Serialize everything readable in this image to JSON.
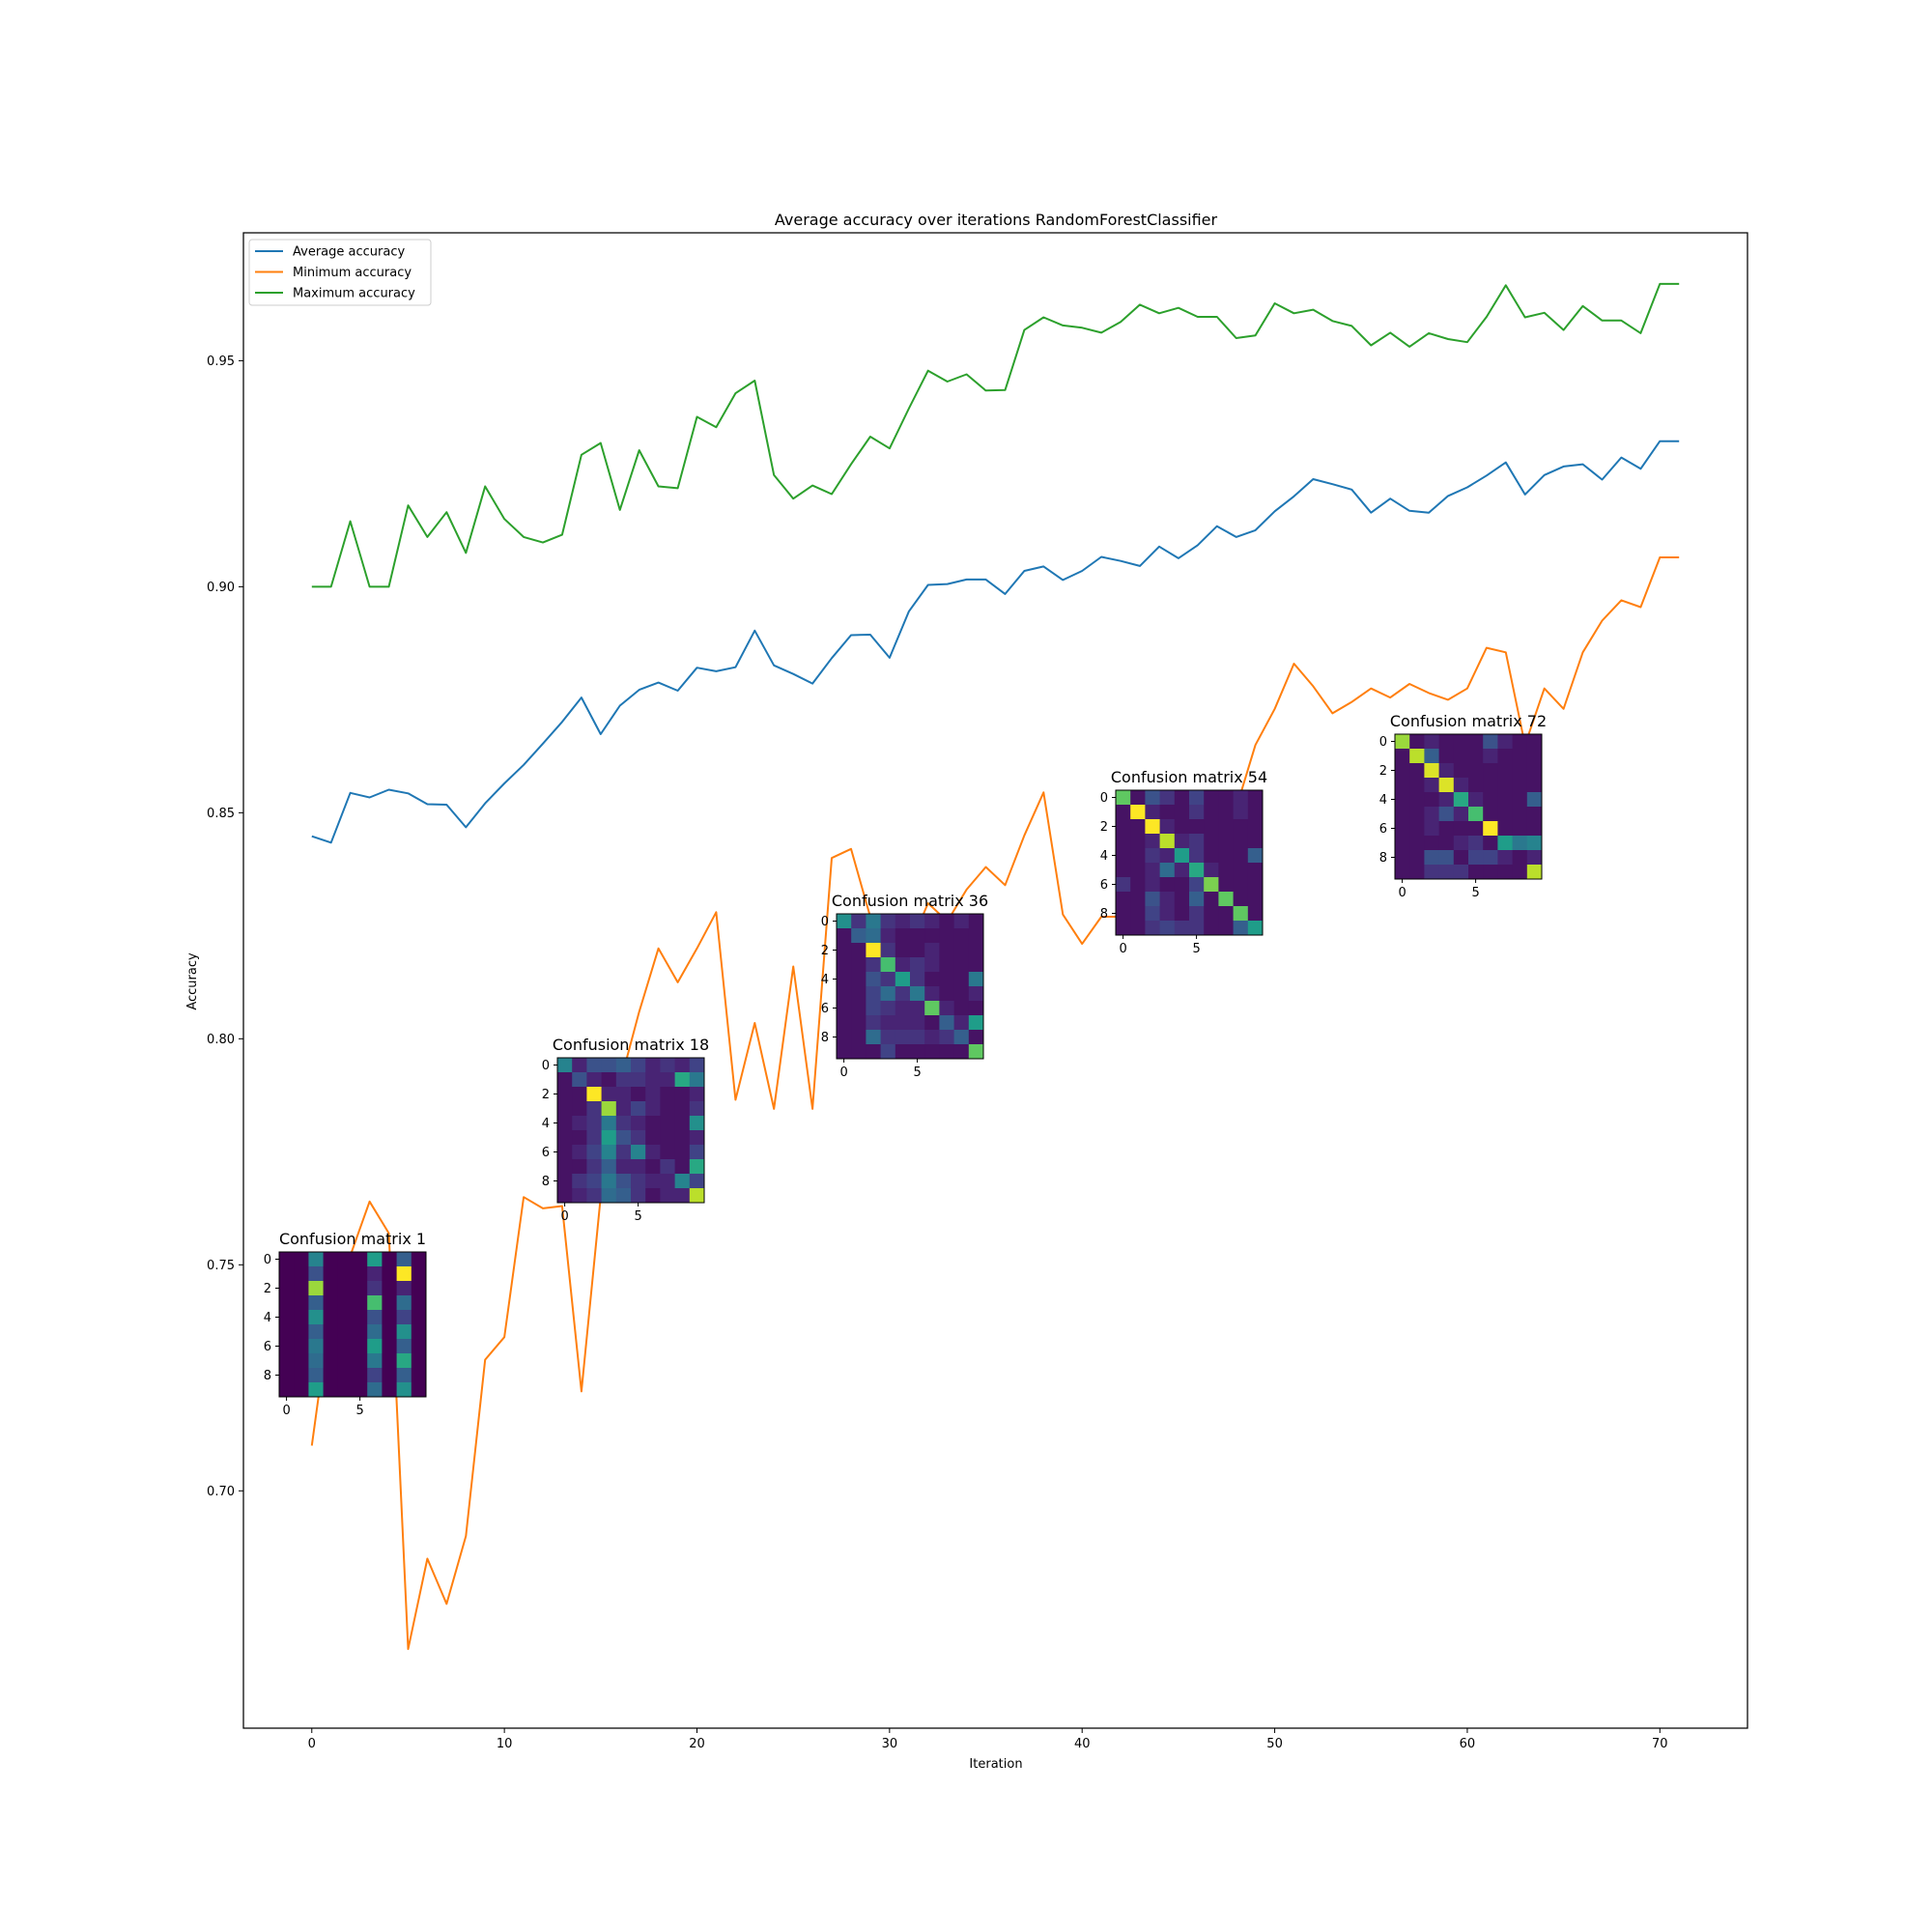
{
  "chart_data": {
    "type": "line",
    "title": "Average accuracy over iterations RandomForestClassifier",
    "xlabel": "Iteration",
    "ylabel": "Accuracy",
    "xlim": [
      -3.55,
      74.55
    ],
    "ylim": [
      0.6475,
      0.9783
    ],
    "xticks": [
      0,
      10,
      20,
      30,
      40,
      50,
      60,
      70
    ],
    "yticks": [
      0.7,
      0.75,
      0.8,
      0.85,
      0.9,
      0.95
    ],
    "xtick_labels": [
      "0",
      "10",
      "20",
      "30",
      "40",
      "50",
      "60",
      "70"
    ],
    "ytick_labels": [
      "0.70",
      "0.75",
      "0.80",
      "0.85",
      "0.90",
      "0.95"
    ],
    "legend_position": "top-left",
    "grid": false,
    "x": [
      0,
      1,
      2,
      3,
      4,
      5,
      6,
      7,
      8,
      9,
      10,
      11,
      12,
      13,
      14,
      15,
      16,
      17,
      18,
      19,
      20,
      21,
      22,
      23,
      24,
      25,
      26,
      27,
      28,
      29,
      30,
      31,
      32,
      33,
      34,
      35,
      36,
      37,
      38,
      39,
      40,
      41,
      42,
      43,
      44,
      45,
      46,
      47,
      48,
      49,
      50,
      51,
      52,
      53,
      54,
      55,
      56,
      57,
      58,
      59,
      60,
      61,
      62,
      63,
      64,
      65,
      66,
      67,
      68,
      69,
      70,
      71
    ],
    "series": [
      {
        "name": "Average accuracy",
        "color": "#1f77b4",
        "values": [
          0.8448,
          0.8434,
          0.8544,
          0.8534,
          0.8551,
          0.8543,
          0.8519,
          0.8518,
          0.8468,
          0.8521,
          0.8565,
          0.8606,
          0.8653,
          0.8701,
          0.8755,
          0.8674,
          0.8737,
          0.8772,
          0.8788,
          0.877,
          0.8821,
          0.8813,
          0.8822,
          0.8903,
          0.8826,
          0.8807,
          0.8786,
          0.8842,
          0.8893,
          0.8894,
          0.8843,
          0.8945,
          0.9004,
          0.9006,
          0.9016,
          0.9016,
          0.8984,
          0.9035,
          0.9045,
          0.9015,
          0.9035,
          0.9066,
          0.9057,
          0.9046,
          0.9089,
          0.9063,
          0.9092,
          0.9134,
          0.911,
          0.9125,
          0.9167,
          0.92,
          0.9238,
          0.9227,
          0.9215,
          0.9164,
          0.9195,
          0.9168,
          0.9164,
          0.9201,
          0.922,
          0.9246,
          0.9275,
          0.9204,
          0.9247,
          0.9266,
          0.9271,
          0.9237,
          0.9286,
          0.9261,
          0.9322,
          0.9322
        ]
      },
      {
        "name": "Minimum accuracy",
        "color": "#ff7f0e",
        "values": [
          0.71,
          0.741,
          0.752,
          0.764,
          0.757,
          0.665,
          0.685,
          0.675,
          0.69,
          0.729,
          0.734,
          0.765,
          0.7625,
          0.763,
          0.722,
          0.765,
          0.79,
          0.806,
          0.82,
          0.8125,
          0.82,
          0.828,
          0.7865,
          0.8035,
          0.7845,
          0.816,
          0.7845,
          0.84,
          0.842,
          0.827,
          0.8,
          0.82,
          0.83,
          0.826,
          0.833,
          0.838,
          0.834,
          0.845,
          0.8545,
          0.8275,
          0.821,
          0.827,
          0.827,
          0.829,
          0.835,
          0.838,
          0.844,
          0.845,
          0.851,
          0.865,
          0.873,
          0.883,
          0.878,
          0.872,
          0.8745,
          0.8775,
          0.8755,
          0.8785,
          0.8765,
          0.875,
          0.8775,
          0.8865,
          0.8855,
          0.865,
          0.8775,
          0.873,
          0.8855,
          0.8925,
          0.897,
          0.8955,
          0.9065,
          0.9065
        ]
      },
      {
        "name": "Maximum accuracy",
        "color": "#2ca02c",
        "values": [
          0.9,
          0.9,
          0.9145,
          0.9,
          0.9,
          0.918,
          0.911,
          0.9165,
          0.9075,
          0.9222,
          0.915,
          0.911,
          0.9098,
          0.9115,
          0.9292,
          0.9318,
          0.917,
          0.9302,
          0.9222,
          0.9218,
          0.9376,
          0.9353,
          0.9428,
          0.9456,
          0.9247,
          0.9195,
          0.9224,
          0.9205,
          0.9271,
          0.9332,
          0.9306,
          0.9394,
          0.9478,
          0.9454,
          0.947,
          0.9434,
          0.9435,
          0.9568,
          0.9596,
          0.9578,
          0.9573,
          0.9562,
          0.9586,
          0.9624,
          0.9605,
          0.9617,
          0.9597,
          0.9597,
          0.955,
          0.9556,
          0.9627,
          0.9605,
          0.9613,
          0.9588,
          0.9577,
          0.9534,
          0.9562,
          0.9531,
          0.9561,
          0.9548,
          0.9541,
          0.9597,
          0.9667,
          0.9596,
          0.9606,
          0.9568,
          0.9621,
          0.9589,
          0.9589,
          0.9561,
          0.967,
          0.967
        ]
      }
    ],
    "insets": [
      {
        "title": "Confusion matrix 1",
        "xtick_labels": [
          "0",
          "5"
        ],
        "ytick_labels": [
          "0",
          "2",
          "4",
          "6",
          "8"
        ],
        "matrix": [
          [
            0,
            0,
            0.45,
            0,
            0,
            0,
            0.55,
            0,
            0.3,
            0
          ],
          [
            0,
            0,
            0.25,
            0,
            0,
            0,
            0.1,
            0,
            1.0,
            0
          ],
          [
            0,
            0,
            0.85,
            0,
            0,
            0,
            0.15,
            0,
            0.1,
            0
          ],
          [
            0,
            0,
            0.3,
            0,
            0,
            0,
            0.7,
            0,
            0.35,
            0
          ],
          [
            0,
            0,
            0.5,
            0,
            0,
            0,
            0.25,
            0,
            0.2,
            0
          ],
          [
            0,
            0,
            0.3,
            0,
            0,
            0,
            0.35,
            0,
            0.5,
            0
          ],
          [
            0,
            0,
            0.4,
            0,
            0,
            0,
            0.55,
            0,
            0.3,
            0
          ],
          [
            0,
            0,
            0.35,
            0,
            0,
            0,
            0.4,
            0,
            0.6,
            0
          ],
          [
            0,
            0,
            0.3,
            0,
            0,
            0,
            0.2,
            0,
            0.3,
            0
          ],
          [
            0,
            0,
            0.55,
            0,
            0,
            0,
            0.35,
            0,
            0.5,
            0
          ]
        ]
      },
      {
        "title": "Confusion matrix 18",
        "xtick_labels": [
          "0",
          "5"
        ],
        "ytick_labels": [
          "0",
          "2",
          "4",
          "6",
          "8"
        ],
        "matrix": [
          [
            0.45,
            0.1,
            0.25,
            0.25,
            0.3,
            0.2,
            0.1,
            0.15,
            0.1,
            0.2
          ],
          [
            0.05,
            0.25,
            0.1,
            0.05,
            0.15,
            0.15,
            0.1,
            0.1,
            0.6,
            0.4
          ],
          [
            0.05,
            0.05,
            1.0,
            0.1,
            0.1,
            0.05,
            0.1,
            0.05,
            0.05,
            0.1
          ],
          [
            0.05,
            0.05,
            0.15,
            0.85,
            0.1,
            0.2,
            0.1,
            0.05,
            0.05,
            0.15
          ],
          [
            0.05,
            0.1,
            0.15,
            0.4,
            0.15,
            0.1,
            0.05,
            0.05,
            0.05,
            0.5
          ],
          [
            0.05,
            0.05,
            0.15,
            0.55,
            0.25,
            0.15,
            0.05,
            0.05,
            0.05,
            0.1
          ],
          [
            0.05,
            0.1,
            0.2,
            0.45,
            0.15,
            0.45,
            0.1,
            0.05,
            0.05,
            0.2
          ],
          [
            0.05,
            0.05,
            0.15,
            0.3,
            0.1,
            0.1,
            0.05,
            0.15,
            0.05,
            0.6
          ],
          [
            0.05,
            0.15,
            0.2,
            0.4,
            0.25,
            0.15,
            0.1,
            0.1,
            0.45,
            0.2
          ],
          [
            0.05,
            0.1,
            0.15,
            0.35,
            0.3,
            0.15,
            0.05,
            0.1,
            0.1,
            0.9
          ]
        ]
      },
      {
        "title": "Confusion matrix 36",
        "xtick_labels": [
          "0",
          "5"
        ],
        "ytick_labels": [
          "0",
          "2",
          "4",
          "6",
          "8"
        ],
        "matrix": [
          [
            0.5,
            0.15,
            0.4,
            0.15,
            0.1,
            0.15,
            0.1,
            0.05,
            0.1,
            0.05
          ],
          [
            0.05,
            0.3,
            0.35,
            0.1,
            0.05,
            0.05,
            0.05,
            0.05,
            0.05,
            0.05
          ],
          [
            0.05,
            0.05,
            1.0,
            0.15,
            0.05,
            0.05,
            0.1,
            0.05,
            0.05,
            0.05
          ],
          [
            0.05,
            0.05,
            0.15,
            0.7,
            0.1,
            0.15,
            0.1,
            0.05,
            0.05,
            0.05
          ],
          [
            0.05,
            0.05,
            0.25,
            0.15,
            0.55,
            0.15,
            0.05,
            0.05,
            0.05,
            0.4
          ],
          [
            0.05,
            0.05,
            0.2,
            0.35,
            0.15,
            0.4,
            0.1,
            0.05,
            0.05,
            0.1
          ],
          [
            0.05,
            0.05,
            0.2,
            0.15,
            0.1,
            0.1,
            0.75,
            0.1,
            0.05,
            0.05
          ],
          [
            0.05,
            0.05,
            0.15,
            0.1,
            0.1,
            0.1,
            0.05,
            0.3,
            0.1,
            0.55
          ],
          [
            0.05,
            0.05,
            0.35,
            0.15,
            0.15,
            0.15,
            0.1,
            0.15,
            0.3,
            0.05
          ],
          [
            0.05,
            0.05,
            0.05,
            0.2,
            0.05,
            0.05,
            0.05,
            0.05,
            0.05,
            0.75
          ]
        ]
      },
      {
        "title": "Confusion matrix 54",
        "xtick_labels": [
          "0",
          "5"
        ],
        "ytick_labels": [
          "0",
          "2",
          "4",
          "6",
          "8"
        ],
        "matrix": [
          [
            0.75,
            0.05,
            0.25,
            0.15,
            0.05,
            0.2,
            0.05,
            0.05,
            0.1,
            0.05
          ],
          [
            0.05,
            1.0,
            0.1,
            0.05,
            0.05,
            0.15,
            0.05,
            0.05,
            0.1,
            0.05
          ],
          [
            0.05,
            0.05,
            1.0,
            0.1,
            0.05,
            0.05,
            0.05,
            0.05,
            0.05,
            0.05
          ],
          [
            0.05,
            0.05,
            0.1,
            0.9,
            0.1,
            0.15,
            0.05,
            0.05,
            0.05,
            0.05
          ],
          [
            0.05,
            0.05,
            0.15,
            0.1,
            0.55,
            0.15,
            0.05,
            0.05,
            0.05,
            0.3
          ],
          [
            0.05,
            0.05,
            0.1,
            0.35,
            0.1,
            0.6,
            0.1,
            0.05,
            0.05,
            0.05
          ],
          [
            0.15,
            0.05,
            0.1,
            0.05,
            0.05,
            0.2,
            0.8,
            0.05,
            0.05,
            0.05
          ],
          [
            0.05,
            0.05,
            0.25,
            0.1,
            0.05,
            0.3,
            0.05,
            0.75,
            0.05,
            0.05
          ],
          [
            0.05,
            0.05,
            0.2,
            0.1,
            0.05,
            0.15,
            0.05,
            0.05,
            0.75,
            0.05
          ],
          [
            0.05,
            0.05,
            0.15,
            0.2,
            0.15,
            0.15,
            0.05,
            0.05,
            0.3,
            0.55
          ]
        ]
      },
      {
        "title": "Confusion matrix 72",
        "xtick_labels": [
          "0",
          "5"
        ],
        "ytick_labels": [
          "0",
          "2",
          "4",
          "6",
          "8"
        ],
        "matrix": [
          [
            0.85,
            0.05,
            0.1,
            0.05,
            0.05,
            0.05,
            0.25,
            0.1,
            0.05,
            0.05
          ],
          [
            0.05,
            0.9,
            0.3,
            0.05,
            0.05,
            0.05,
            0.1,
            0.05,
            0.05,
            0.05
          ],
          [
            0.05,
            0.05,
            0.95,
            0.1,
            0.05,
            0.05,
            0.05,
            0.05,
            0.05,
            0.05
          ],
          [
            0.05,
            0.05,
            0.1,
            0.95,
            0.1,
            0.05,
            0.05,
            0.05,
            0.05,
            0.05
          ],
          [
            0.05,
            0.05,
            0.05,
            0.1,
            0.6,
            0.1,
            0.05,
            0.05,
            0.05,
            0.3
          ],
          [
            0.05,
            0.05,
            0.1,
            0.25,
            0.1,
            0.7,
            0.05,
            0.05,
            0.05,
            0.05
          ],
          [
            0.05,
            0.05,
            0.1,
            0.05,
            0.05,
            0.05,
            1.0,
            0.05,
            0.05,
            0.05
          ],
          [
            0.05,
            0.05,
            0.05,
            0.05,
            0.1,
            0.15,
            0.05,
            0.55,
            0.4,
            0.45
          ],
          [
            0.05,
            0.05,
            0.25,
            0.25,
            0.05,
            0.2,
            0.2,
            0.1,
            0.05,
            0.1
          ],
          [
            0.05,
            0.05,
            0.15,
            0.15,
            0.15,
            0.05,
            0.05,
            0.05,
            0.05,
            0.9
          ]
        ]
      }
    ]
  }
}
